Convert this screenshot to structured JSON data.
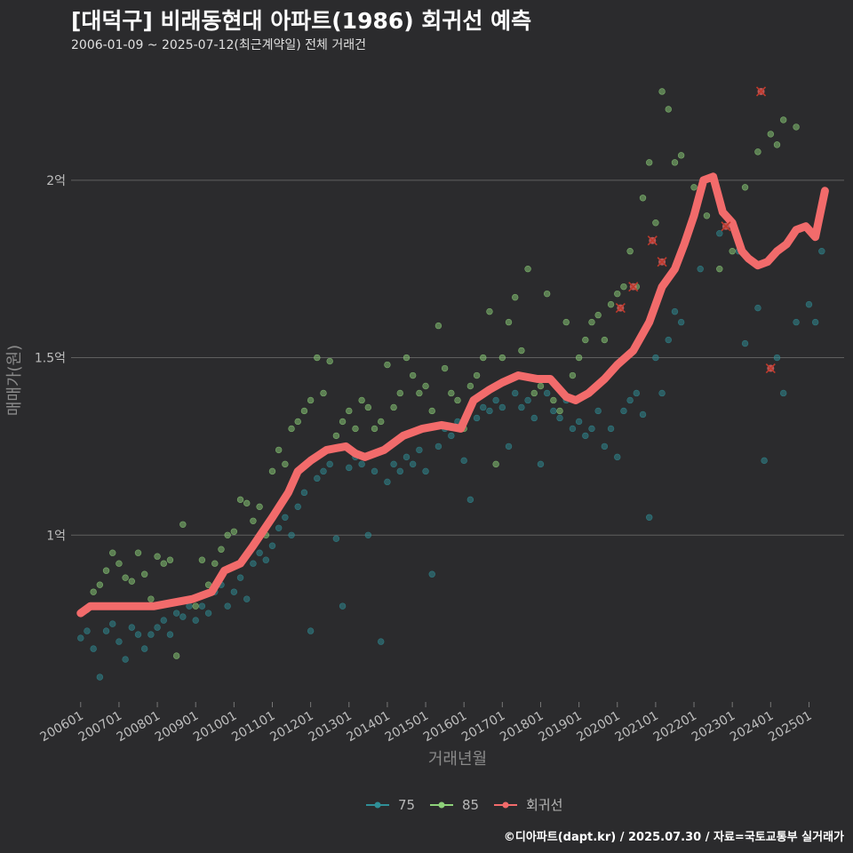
{
  "header": {
    "title": "[대덕구] 비래동현대 아파트(1986) 회귀선 예측",
    "subtitle": "2006-01-09 ~ 2025-07-12(최근계약일) 전체 거래건",
    "caption": "©디아파트(dapt.kr) / 2025.07.30 / 자료=국토교통부 실거래가"
  },
  "chart_data": {
    "type": "scatter",
    "title": "[대덕구] 비래동현대 아파트(1986) 회귀선 예측",
    "xlabel": "거래년월",
    "ylabel": "매매가(원)",
    "x_unit": "month",
    "xlim": [
      "2005-10",
      "2025-12"
    ],
    "ylim": [
      0.53,
      2.32
    ],
    "y_unit": "억",
    "grid": "horizontal",
    "legend_position": "bottom",
    "x_tick_labels": [
      "200601",
      "200701",
      "200801",
      "200901",
      "201001",
      "201101",
      "201201",
      "201301",
      "201401",
      "201501",
      "201601",
      "201701",
      "201801",
      "201901",
      "202001",
      "202101",
      "202201",
      "202301",
      "202401",
      "202501"
    ],
    "y_tick_labels": [
      "1억",
      "1.5억",
      "2억"
    ],
    "y_tick_values": [
      1.0,
      1.5,
      2.0
    ],
    "series": [
      {
        "name": "75",
        "color": "#2f8f97",
        "points": [
          [
            "2006-01",
            0.71
          ],
          [
            "2006-03",
            0.73
          ],
          [
            "2006-05",
            0.68
          ],
          [
            "2006-07",
            0.6
          ],
          [
            "2006-09",
            0.73
          ],
          [
            "2006-11",
            0.75
          ],
          [
            "2007-01",
            0.7
          ],
          [
            "2007-03",
            0.65
          ],
          [
            "2007-05",
            0.74
          ],
          [
            "2007-07",
            0.72
          ],
          [
            "2007-09",
            0.68
          ],
          [
            "2007-11",
            0.72
          ],
          [
            "2008-01",
            0.74
          ],
          [
            "2008-03",
            0.76
          ],
          [
            "2008-05",
            0.72
          ],
          [
            "2008-07",
            0.78
          ],
          [
            "2008-09",
            0.77
          ],
          [
            "2008-11",
            0.8
          ],
          [
            "2009-01",
            0.76
          ],
          [
            "2009-03",
            0.8
          ],
          [
            "2009-05",
            0.78
          ],
          [
            "2009-07",
            0.84
          ],
          [
            "2009-09",
            0.86
          ],
          [
            "2009-11",
            0.8
          ],
          [
            "2010-01",
            0.84
          ],
          [
            "2010-03",
            0.88
          ],
          [
            "2010-05",
            0.82
          ],
          [
            "2010-07",
            0.92
          ],
          [
            "2010-09",
            0.95
          ],
          [
            "2010-11",
            0.93
          ],
          [
            "2011-01",
            0.97
          ],
          [
            "2011-03",
            1.02
          ],
          [
            "2011-05",
            1.05
          ],
          [
            "2011-07",
            1.0
          ],
          [
            "2011-09",
            1.08
          ],
          [
            "2011-11",
            1.12
          ],
          [
            "2012-01",
            0.73
          ],
          [
            "2012-03",
            1.16
          ],
          [
            "2012-05",
            1.18
          ],
          [
            "2012-07",
            1.2
          ],
          [
            "2012-09",
            0.99
          ],
          [
            "2012-11",
            0.8
          ],
          [
            "2013-01",
            1.19
          ],
          [
            "2013-03",
            1.22
          ],
          [
            "2013-05",
            1.2
          ],
          [
            "2013-07",
            1.0
          ],
          [
            "2013-09",
            1.18
          ],
          [
            "2013-11",
            0.7
          ],
          [
            "2014-01",
            1.15
          ],
          [
            "2014-03",
            1.2
          ],
          [
            "2014-05",
            1.18
          ],
          [
            "2014-07",
            1.22
          ],
          [
            "2014-09",
            1.2
          ],
          [
            "2014-11",
            1.24
          ],
          [
            "2015-01",
            1.18
          ],
          [
            "2015-03",
            0.89
          ],
          [
            "2015-05",
            1.25
          ],
          [
            "2015-07",
            1.3
          ],
          [
            "2015-09",
            1.28
          ],
          [
            "2015-11",
            1.32
          ],
          [
            "2016-01",
            1.21
          ],
          [
            "2016-03",
            1.1
          ],
          [
            "2016-05",
            1.33
          ],
          [
            "2016-07",
            1.36
          ],
          [
            "2016-09",
            1.35
          ],
          [
            "2016-11",
            1.38
          ],
          [
            "2017-01",
            1.36
          ],
          [
            "2017-03",
            1.25
          ],
          [
            "2017-05",
            1.4
          ],
          [
            "2017-07",
            1.36
          ],
          [
            "2017-09",
            1.38
          ],
          [
            "2017-11",
            1.33
          ],
          [
            "2018-01",
            1.2
          ],
          [
            "2018-03",
            1.4
          ],
          [
            "2018-05",
            1.35
          ],
          [
            "2018-07",
            1.33
          ],
          [
            "2018-09",
            1.38
          ],
          [
            "2018-11",
            1.3
          ],
          [
            "2019-01",
            1.32
          ],
          [
            "2019-03",
            1.28
          ],
          [
            "2019-05",
            1.3
          ],
          [
            "2019-07",
            1.35
          ],
          [
            "2019-09",
            1.25
          ],
          [
            "2019-11",
            1.3
          ],
          [
            "2020-01",
            1.22
          ],
          [
            "2020-03",
            1.35
          ],
          [
            "2020-05",
            1.38
          ],
          [
            "2020-07",
            1.4
          ],
          [
            "2020-09",
            1.34
          ],
          [
            "2020-11",
            1.05
          ],
          [
            "2021-01",
            1.5
          ],
          [
            "2021-03",
            1.4
          ],
          [
            "2021-05",
            1.55
          ],
          [
            "2021-07",
            1.63
          ],
          [
            "2021-09",
            1.6
          ],
          [
            "2022-03",
            1.75
          ],
          [
            "2022-09",
            1.85
          ],
          [
            "2023-03",
            1.8
          ],
          [
            "2023-05",
            1.54
          ],
          [
            "2023-09",
            1.64
          ],
          [
            "2023-11",
            1.21
          ],
          [
            "2024-03",
            1.5
          ],
          [
            "2024-05",
            1.4
          ],
          [
            "2024-09",
            1.6
          ],
          [
            "2025-01",
            1.65
          ],
          [
            "2025-03",
            1.6
          ],
          [
            "2025-05",
            1.8
          ]
        ]
      },
      {
        "name": "85",
        "color": "#8ed17a",
        "points": [
          [
            "2006-03",
            0.79
          ],
          [
            "2006-05",
            0.84
          ],
          [
            "2006-07",
            0.86
          ],
          [
            "2006-09",
            0.9
          ],
          [
            "2006-11",
            0.95
          ],
          [
            "2007-01",
            0.92
          ],
          [
            "2007-03",
            0.88
          ],
          [
            "2007-05",
            0.87
          ],
          [
            "2007-07",
            0.95
          ],
          [
            "2007-09",
            0.89
          ],
          [
            "2007-11",
            0.82
          ],
          [
            "2008-01",
            0.94
          ],
          [
            "2008-03",
            0.92
          ],
          [
            "2008-05",
            0.93
          ],
          [
            "2008-07",
            0.66
          ],
          [
            "2008-09",
            1.03
          ],
          [
            "2008-11",
            0.82
          ],
          [
            "2009-01",
            0.8
          ],
          [
            "2009-03",
            0.93
          ],
          [
            "2009-05",
            0.86
          ],
          [
            "2009-07",
            0.92
          ],
          [
            "2009-09",
            0.96
          ],
          [
            "2009-11",
            1.0
          ],
          [
            "2010-01",
            1.01
          ],
          [
            "2010-03",
            1.1
          ],
          [
            "2010-05",
            1.09
          ],
          [
            "2010-07",
            1.04
          ],
          [
            "2010-09",
            1.08
          ],
          [
            "2010-11",
            1.0
          ],
          [
            "2011-01",
            1.18
          ],
          [
            "2011-03",
            1.24
          ],
          [
            "2011-05",
            1.2
          ],
          [
            "2011-07",
            1.3
          ],
          [
            "2011-09",
            1.32
          ],
          [
            "2011-11",
            1.35
          ],
          [
            "2012-01",
            1.38
          ],
          [
            "2012-03",
            1.5
          ],
          [
            "2012-05",
            1.4
          ],
          [
            "2012-07",
            1.49
          ],
          [
            "2012-09",
            1.28
          ],
          [
            "2012-11",
            1.32
          ],
          [
            "2013-01",
            1.35
          ],
          [
            "2013-03",
            1.3
          ],
          [
            "2013-05",
            1.38
          ],
          [
            "2013-07",
            1.36
          ],
          [
            "2013-09",
            1.3
          ],
          [
            "2013-11",
            1.32
          ],
          [
            "2014-01",
            1.48
          ],
          [
            "2014-03",
            1.36
          ],
          [
            "2014-05",
            1.4
          ],
          [
            "2014-07",
            1.5
          ],
          [
            "2014-09",
            1.45
          ],
          [
            "2014-11",
            1.4
          ],
          [
            "2015-01",
            1.42
          ],
          [
            "2015-03",
            1.35
          ],
          [
            "2015-05",
            1.59
          ],
          [
            "2015-07",
            1.47
          ],
          [
            "2015-09",
            1.4
          ],
          [
            "2015-11",
            1.38
          ],
          [
            "2016-01",
            1.3
          ],
          [
            "2016-03",
            1.42
          ],
          [
            "2016-05",
            1.45
          ],
          [
            "2016-07",
            1.5
          ],
          [
            "2016-09",
            1.63
          ],
          [
            "2016-11",
            1.2
          ],
          [
            "2017-01",
            1.5
          ],
          [
            "2017-03",
            1.6
          ],
          [
            "2017-05",
            1.67
          ],
          [
            "2017-07",
            1.52
          ],
          [
            "2017-09",
            1.75
          ],
          [
            "2017-11",
            1.4
          ],
          [
            "2018-01",
            1.42
          ],
          [
            "2018-03",
            1.68
          ],
          [
            "2018-05",
            1.38
          ],
          [
            "2018-07",
            1.35
          ],
          [
            "2018-09",
            1.6
          ],
          [
            "2018-11",
            1.45
          ],
          [
            "2019-01",
            1.5
          ],
          [
            "2019-03",
            1.55
          ],
          [
            "2019-05",
            1.6
          ],
          [
            "2019-07",
            1.62
          ],
          [
            "2019-09",
            1.55
          ],
          [
            "2019-11",
            1.65
          ],
          [
            "2020-01",
            1.68
          ],
          [
            "2020-03",
            1.7
          ],
          [
            "2020-05",
            1.8
          ],
          [
            "2020-07",
            1.7
          ],
          [
            "2020-09",
            1.95
          ],
          [
            "2020-11",
            2.05
          ],
          [
            "2021-01",
            1.88
          ],
          [
            "2021-03",
            2.25
          ],
          [
            "2021-05",
            2.2
          ],
          [
            "2021-07",
            2.05
          ],
          [
            "2021-09",
            2.07
          ],
          [
            "2022-01",
            1.98
          ],
          [
            "2022-05",
            1.9
          ],
          [
            "2022-09",
            1.75
          ],
          [
            "2023-01",
            1.8
          ],
          [
            "2023-05",
            1.98
          ],
          [
            "2023-09",
            2.08
          ],
          [
            "2024-01",
            2.13
          ],
          [
            "2024-03",
            2.1
          ],
          [
            "2024-05",
            2.17
          ],
          [
            "2024-09",
            2.15
          ]
        ]
      },
      {
        "name": "회귀선",
        "color": "#f26b6b",
        "points": [
          [
            "2006-01",
            0.78
          ],
          [
            "2006-04",
            0.8
          ],
          [
            "2006-08",
            0.8
          ],
          [
            "2006-12",
            0.8
          ],
          [
            "2007-06",
            0.8
          ],
          [
            "2007-12",
            0.8
          ],
          [
            "2008-06",
            0.81
          ],
          [
            "2008-12",
            0.82
          ],
          [
            "2009-06",
            0.84
          ],
          [
            "2009-10",
            0.9
          ],
          [
            "2010-03",
            0.92
          ],
          [
            "2010-07",
            0.97
          ],
          [
            "2011-01",
            1.05
          ],
          [
            "2011-06",
            1.12
          ],
          [
            "2011-09",
            1.18
          ],
          [
            "2012-01",
            1.21
          ],
          [
            "2012-06",
            1.24
          ],
          [
            "2012-12",
            1.25
          ],
          [
            "2013-03",
            1.23
          ],
          [
            "2013-06",
            1.22
          ],
          [
            "2013-12",
            1.24
          ],
          [
            "2014-06",
            1.28
          ],
          [
            "2014-12",
            1.3
          ],
          [
            "2015-06",
            1.31
          ],
          [
            "2015-12",
            1.3
          ],
          [
            "2016-04",
            1.38
          ],
          [
            "2016-09",
            1.41
          ],
          [
            "2017-01",
            1.43
          ],
          [
            "2017-06",
            1.45
          ],
          [
            "2017-12",
            1.44
          ],
          [
            "2018-04",
            1.44
          ],
          [
            "2018-09",
            1.39
          ],
          [
            "2018-12",
            1.38
          ],
          [
            "2019-04",
            1.4
          ],
          [
            "2019-09",
            1.44
          ],
          [
            "2020-01",
            1.48
          ],
          [
            "2020-06",
            1.52
          ],
          [
            "2020-11",
            1.6
          ],
          [
            "2021-03",
            1.7
          ],
          [
            "2021-07",
            1.75
          ],
          [
            "2021-10",
            1.82
          ],
          [
            "2022-01",
            1.9
          ],
          [
            "2022-04",
            2.0
          ],
          [
            "2022-07",
            2.01
          ],
          [
            "2022-10",
            1.91
          ],
          [
            "2023-01",
            1.88
          ],
          [
            "2023-04",
            1.8
          ],
          [
            "2023-06",
            1.78
          ],
          [
            "2023-09",
            1.76
          ],
          [
            "2023-12",
            1.77
          ],
          [
            "2024-03",
            1.8
          ],
          [
            "2024-06",
            1.82
          ],
          [
            "2024-09",
            1.86
          ],
          [
            "2024-12",
            1.87
          ],
          [
            "2025-03",
            1.84
          ],
          [
            "2025-06",
            1.97
          ]
        ]
      }
    ],
    "marked_points": [
      [
        "2020-02",
        1.64
      ],
      [
        "2020-06",
        1.7
      ],
      [
        "2020-12",
        1.83
      ],
      [
        "2021-03",
        1.77
      ],
      [
        "2022-11",
        1.87
      ],
      [
        "2023-10",
        2.25
      ],
      [
        "2024-01",
        1.47
      ]
    ]
  },
  "legend": {
    "items": [
      {
        "label": "75",
        "color": "#2f8f97"
      },
      {
        "label": "85",
        "color": "#8ed17a"
      },
      {
        "label": "회귀선",
        "color": "#f26b6b"
      }
    ]
  }
}
